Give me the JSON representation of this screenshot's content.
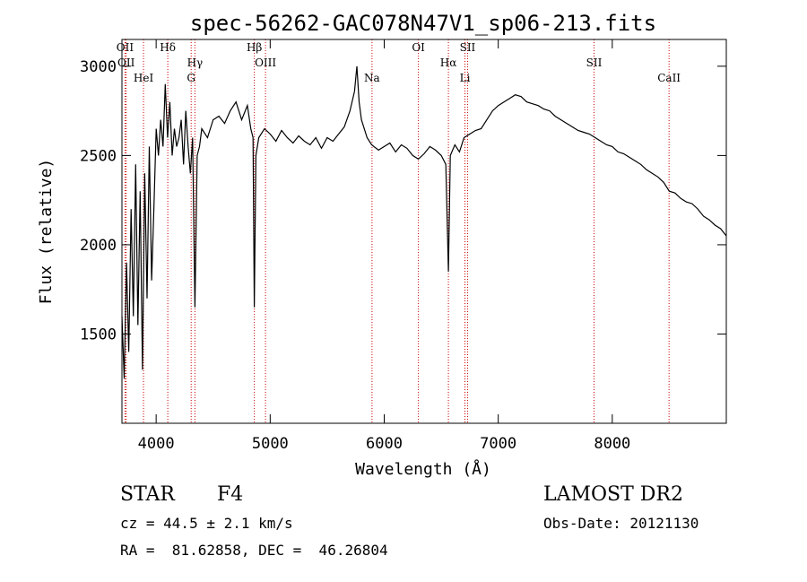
{
  "chart_data": {
    "type": "line",
    "title": "spec-56262-GAC078N47V1_sp06-213.fits",
    "xlabel": "Wavelength (Å)",
    "ylabel": "Flux (relative)",
    "xlim": [
      3700,
      9000
    ],
    "ylim": [
      1000,
      3150
    ],
    "xticks": [
      4000,
      5000,
      6000,
      7000,
      8000
    ],
    "yticks": [
      1500,
      2000,
      2500,
      3000
    ],
    "series": [
      {
        "x": [
          3700,
          3720,
          3740,
          3760,
          3780,
          3800,
          3820,
          3840,
          3860,
          3880,
          3900,
          3920,
          3940,
          3960,
          3980,
          4000,
          4020,
          4040,
          4060,
          4080,
          4100,
          4120,
          4140,
          4160,
          4180,
          4200,
          4220,
          4240,
          4260,
          4280,
          4300,
          4320,
          4340,
          4360,
          4380,
          4400,
          4450,
          4500,
          4550,
          4600,
          4650,
          4700,
          4750,
          4800,
          4830,
          4850,
          4861,
          4875,
          4900,
          4950,
          5000,
          5050,
          5100,
          5150,
          5200,
          5250,
          5300,
          5350,
          5400,
          5450,
          5500,
          5550,
          5600,
          5650,
          5700,
          5740,
          5760,
          5780,
          5800,
          5850,
          5890,
          5950,
          6000,
          6050,
          6100,
          6150,
          6200,
          6250,
          6300,
          6350,
          6400,
          6450,
          6500,
          6540,
          6563,
          6580,
          6620,
          6660,
          6700,
          6750,
          6800,
          6850,
          6900,
          6950,
          7000,
          7050,
          7100,
          7150,
          7200,
          7250,
          7300,
          7350,
          7400,
          7450,
          7500,
          7550,
          7600,
          7650,
          7700,
          7750,
          7800,
          7850,
          7900,
          7950,
          8000,
          8050,
          8100,
          8150,
          8200,
          8250,
          8300,
          8350,
          8400,
          8450,
          8500,
          8550,
          8600,
          8650,
          8700,
          8750,
          8800,
          8850,
          8900,
          8950,
          9000
        ],
        "values": [
          1600,
          1250,
          1900,
          1400,
          2200,
          1600,
          2450,
          1550,
          2300,
          1300,
          2400,
          1700,
          2550,
          1800,
          2200,
          2650,
          2500,
          2700,
          2550,
          2900,
          2600,
          2800,
          2500,
          2650,
          2550,
          2600,
          2700,
          2450,
          2750,
          2550,
          2400,
          2600,
          1650,
          2500,
          2550,
          2650,
          2600,
          2700,
          2720,
          2680,
          2750,
          2800,
          2700,
          2780,
          2650,
          2600,
          1650,
          2500,
          2600,
          2650,
          2620,
          2580,
          2640,
          2600,
          2570,
          2610,
          2580,
          2560,
          2600,
          2540,
          2600,
          2580,
          2620,
          2660,
          2750,
          2860,
          3000,
          2800,
          2700,
          2600,
          2560,
          2530,
          2550,
          2570,
          2520,
          2560,
          2540,
          2500,
          2480,
          2510,
          2550,
          2530,
          2500,
          2450,
          1850,
          2500,
          2560,
          2520,
          2600,
          2620,
          2640,
          2650,
          2700,
          2750,
          2780,
          2800,
          2820,
          2840,
          2830,
          2800,
          2790,
          2780,
          2760,
          2750,
          2720,
          2700,
          2680,
          2660,
          2640,
          2630,
          2620,
          2600,
          2580,
          2560,
          2550,
          2520,
          2510,
          2490,
          2470,
          2450,
          2420,
          2400,
          2380,
          2350,
          2300,
          2290,
          2260,
          2240,
          2230,
          2200,
          2160,
          2140,
          2110,
          2090,
          2050
        ]
      }
    ],
    "lines": [
      {
        "label": "OII",
        "x": 3727
      },
      {
        "label": "OII",
        "x": 3737
      },
      {
        "label": "HeI",
        "x": 3889
      },
      {
        "label": "Hδ",
        "x": 4102
      },
      {
        "label": "Hγ",
        "x": 4340
      },
      {
        "label": "G",
        "x": 4307
      },
      {
        "label": "Hβ",
        "x": 4861
      },
      {
        "label": "OIII",
        "x": 4959
      },
      {
        "label": "Na",
        "x": 5893
      },
      {
        "label": "OI",
        "x": 6300
      },
      {
        "label": "Hα",
        "x": 6563
      },
      {
        "label": "Li",
        "x": 6708
      },
      {
        "label": "SII",
        "x": 6731
      },
      {
        "label": "SII",
        "x": 7840
      },
      {
        "label": "CaII",
        "x": 8498
      }
    ]
  },
  "info": {
    "object_class": "STAR",
    "subclass": "F4",
    "survey": "LAMOST DR2",
    "cz": "cz = 44.5 ± 2.1 km/s",
    "obs_date": "Obs-Date: 20121130",
    "coords": "RA =  81.62858, DEC =  46.26804"
  },
  "colors": {
    "line_markers": "#cc0000",
    "spectrum": "#000000"
  }
}
